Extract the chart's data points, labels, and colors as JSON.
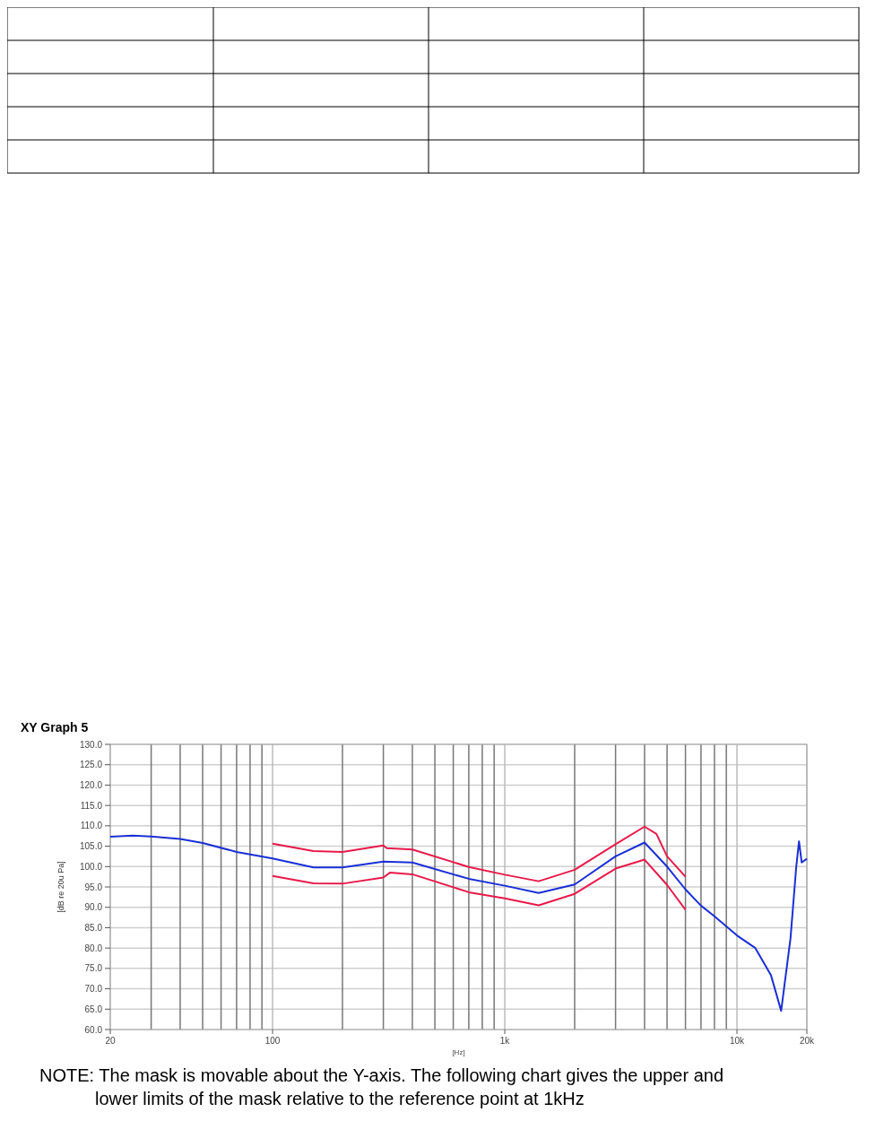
{
  "chart_data": {
    "type": "line",
    "title": "XY Graph 5",
    "xlabel": "[Hz]",
    "ylabel": "[dB re 20u Pa]",
    "log": "x",
    "grid": true,
    "marker": "none",
    "line_style": "solid",
    "xlim": [
      20,
      20000
    ],
    "ylim": [
      60,
      130
    ],
    "xticks": [
      {
        "value": 20,
        "label": "20"
      },
      {
        "value": 30,
        "label": null
      },
      {
        "value": 40,
        "label": null
      },
      {
        "value": 50,
        "label": null
      },
      {
        "value": 60,
        "label": null
      },
      {
        "value": 70,
        "label": null
      },
      {
        "value": 80,
        "label": null
      },
      {
        "value": 90,
        "label": null
      },
      {
        "value": 100,
        "label": "100"
      },
      {
        "value": 200,
        "label": null
      },
      {
        "value": 300,
        "label": null
      },
      {
        "value": 400,
        "label": null
      },
      {
        "value": 500,
        "label": null
      },
      {
        "value": 600,
        "label": null
      },
      {
        "value": 700,
        "label": null
      },
      {
        "value": 800,
        "label": null
      },
      {
        "value": 900,
        "label": null
      },
      {
        "value": 1000,
        "label": "1k"
      },
      {
        "value": 2000,
        "label": null
      },
      {
        "value": 3000,
        "label": null
      },
      {
        "value": 4000,
        "label": null
      },
      {
        "value": 5000,
        "label": null
      },
      {
        "value": 6000,
        "label": null
      },
      {
        "value": 7000,
        "label": null
      },
      {
        "value": 8000,
        "label": null
      },
      {
        "value": 9000,
        "label": null
      },
      {
        "value": 10000,
        "label": "10k"
      },
      {
        "value": 20000,
        "label": "20k"
      }
    ],
    "yticks": [
      {
        "value": 60,
        "label": "60.0"
      },
      {
        "value": 65,
        "label": "65.0"
      },
      {
        "value": 70,
        "label": "70.0"
      },
      {
        "value": 75,
        "label": "75.0"
      },
      {
        "value": 80,
        "label": "80.0"
      },
      {
        "value": 85,
        "label": "85.0"
      },
      {
        "value": 90,
        "label": "90.0"
      },
      {
        "value": 95,
        "label": "95.0"
      },
      {
        "value": 100,
        "label": "100.0"
      },
      {
        "value": 105,
        "label": "105.0"
      },
      {
        "value": 110,
        "label": "110.0"
      },
      {
        "value": 115,
        "label": "115.0"
      },
      {
        "value": 120,
        "label": "120.0"
      },
      {
        "value": 125,
        "label": "125.0"
      },
      {
        "value": 130,
        "label": "130.0"
      }
    ],
    "series": [
      {
        "color": "#e8194a",
        "x": [
          100,
          150,
          200,
          300,
          310,
          400,
          700,
          1000,
          1400,
          2000,
          3000,
          4000,
          4500,
          5000,
          6000
        ],
        "values": [
          105.6,
          103.8,
          103.6,
          105.2,
          104.5,
          104.2,
          99.9,
          98,
          96.4,
          99.2,
          105.5,
          109.8,
          108,
          102.5,
          97.5
        ]
      },
      {
        "color": "#1a2fd6",
        "x": [
          20,
          25,
          30,
          40,
          50,
          70,
          100,
          150,
          200,
          300,
          400,
          700,
          1000,
          1400,
          2000,
          3000,
          4000,
          5000,
          6000,
          7000,
          8000,
          10000,
          12000,
          14000,
          15500,
          17000,
          18000,
          18500,
          19000,
          20000
        ],
        "values": [
          107.3,
          107.6,
          107.4,
          106.8,
          105.8,
          103.6,
          102,
          99.8,
          99.8,
          101.2,
          101,
          97,
          95.3,
          93.5,
          95.6,
          102.5,
          105.9,
          100,
          94.4,
          90.4,
          87.8,
          83.1,
          80,
          73.4,
          64.6,
          82.3,
          99.9,
          106.2,
          101,
          101.9
        ]
      },
      {
        "color": "#e8194a",
        "x": [
          100,
          150,
          200,
          300,
          320,
          400,
          700,
          1000,
          1400,
          2000,
          3000,
          4000,
          5000,
          6000
        ],
        "values": [
          97.7,
          95.9,
          95.8,
          97.3,
          98.5,
          98.1,
          93.7,
          92.2,
          90.5,
          93.3,
          99.5,
          101.7,
          95.5,
          89.4
        ]
      }
    ],
    "annotations": [
      "NOTE: The mask is movable about the Y-axis. The following chart gives the upper and lower limits of the mask relative to the reference point at 1kHz"
    ]
  }
}
